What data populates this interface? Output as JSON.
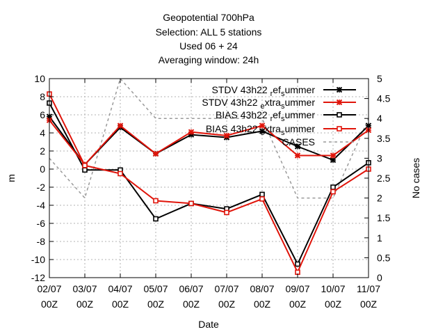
{
  "chart_data": {
    "type": "line",
    "title_lines": [
      "Geopotential 700hPa",
      "Selection: ALL       5 stations",
      "Used  06  + 24",
      "Averaging window: 24h"
    ],
    "xlabel": "Date",
    "ylabel": "m",
    "y2label": "No cases",
    "categories": [
      "02/07 00Z",
      "03/07 00Z",
      "04/07 00Z",
      "05/07 00Z",
      "06/07 00Z",
      "07/07 00Z",
      "08/07 00Z",
      "09/07 00Z",
      "10/07 00Z",
      "11/07 00Z"
    ],
    "x_tick_lines": [
      [
        "02/07",
        "00Z"
      ],
      [
        "03/07",
        "00Z"
      ],
      [
        "04/07",
        "00Z"
      ],
      [
        "05/07",
        "00Z"
      ],
      [
        "06/07",
        "00Z"
      ],
      [
        "07/07",
        "00Z"
      ],
      [
        "08/07",
        "00Z"
      ],
      [
        "09/07",
        "00Z"
      ],
      [
        "10/07",
        "00Z"
      ],
      [
        "11/07",
        "00Z"
      ]
    ],
    "ylim": [
      -12,
      10
    ],
    "yticks": [
      "10",
      "8",
      "6",
      "4",
      "2",
      "0",
      "-2",
      "-4",
      "-6",
      "-8",
      "-10",
      "-12"
    ],
    "y2lim": [
      0,
      5
    ],
    "y2ticks": [
      "5",
      "4.5",
      "4",
      "3.5",
      "3",
      "2.5",
      "2",
      "1.5",
      "1",
      "0.5",
      "0"
    ],
    "grid": true,
    "legend_position": "top-right",
    "series": [
      {
        "name": "STDV 43h22_ref_summer",
        "legend_text": "STDV 43h22",
        "legend_sub1": "r",
        "legend_mid1": "ef",
        "legend_sub2": "s",
        "legend_tail": "ummer",
        "color": "#000000",
        "marker": "star",
        "axis": "y1",
        "dash": false,
        "values": [
          5.8,
          0.5,
          4.6,
          1.7,
          3.8,
          3.5,
          4.2,
          2.5,
          1.0,
          4.8
        ]
      },
      {
        "name": "STDV 43h22_extra_summer",
        "legend_text": "STDV 43h22",
        "legend_sub1": "e",
        "legend_mid1": "xtra",
        "legend_sub2": "s",
        "legend_tail": "ummer",
        "color": "#e0140a",
        "marker": "star",
        "axis": "y1",
        "dash": false,
        "values": [
          5.4,
          0.5,
          4.8,
          1.7,
          4.1,
          3.7,
          4.8,
          1.5,
          1.5,
          4.3
        ]
      },
      {
        "name": "BIAS 43h22_ref_summer",
        "legend_text": "BIAS 43h22",
        "legend_sub1": "r",
        "legend_mid1": "ef",
        "legend_sub2": "s",
        "legend_tail": "ummer",
        "color": "#000000",
        "marker": "square",
        "axis": "y1",
        "dash": false,
        "values": [
          7.3,
          -0.1,
          -0.1,
          -5.5,
          -3.8,
          -4.4,
          -2.8,
          -10.5,
          -2.0,
          0.7
        ]
      },
      {
        "name": "BIAS 43h22_extra_summer",
        "legend_text": "BIAS 43h22",
        "legend_sub1": "e",
        "legend_mid1": "xtra",
        "legend_sub2": "s",
        "legend_tail": "ummer",
        "color": "#e0140a",
        "marker": "square",
        "axis": "y1",
        "dash": false,
        "values": [
          8.3,
          0.4,
          -0.5,
          -3.5,
          -3.8,
          -4.8,
          -3.3,
          -11.4,
          -2.5,
          0.0
        ]
      },
      {
        "name": "CASES",
        "legend_text": "CASES",
        "color": "#999999",
        "marker": "none",
        "axis": "y2",
        "dash": true,
        "values": [
          3.0,
          2.0,
          5.0,
          4.0,
          4.0,
          4.0,
          4.0,
          2.0,
          2.0,
          4.0
        ]
      }
    ]
  }
}
